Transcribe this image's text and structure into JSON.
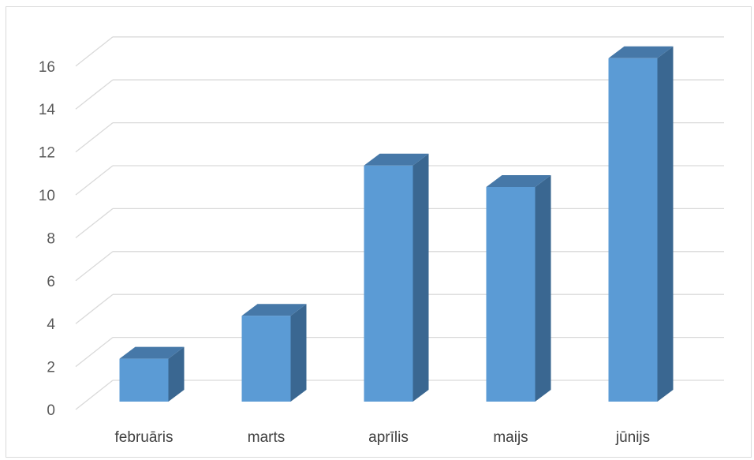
{
  "chart_data": {
    "type": "bar",
    "style": "3d-column",
    "categories": [
      "februāris",
      "marts",
      "aprīlis",
      "maijs",
      "jūnijs"
    ],
    "values": [
      2,
      4,
      11,
      10,
      16
    ],
    "ylim": [
      0,
      16
    ],
    "yticks": [
      0,
      2,
      4,
      6,
      8,
      10,
      12,
      14,
      16
    ],
    "ytick_labels": [
      "0",
      "2",
      "4",
      "6",
      "8",
      "10",
      "12",
      "14",
      "16"
    ],
    "grid": true,
    "legend": "none",
    "colors": {
      "front": "#5b9bd5",
      "side": "#3a6791",
      "top": "#4678a8",
      "grid": "#d9d9d9"
    }
  }
}
